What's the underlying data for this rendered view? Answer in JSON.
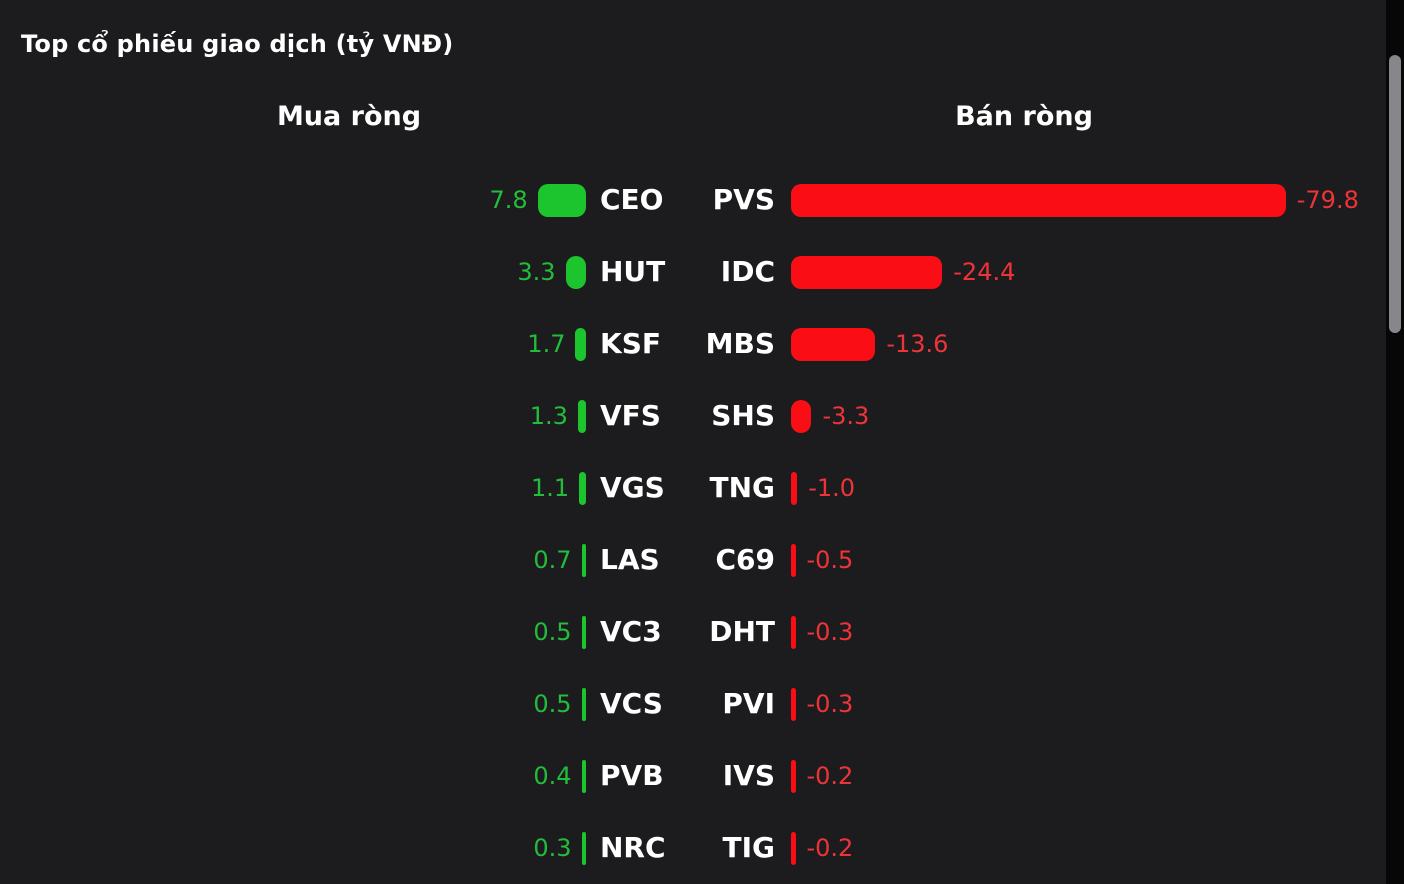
{
  "chart_data": {
    "type": "bar",
    "title": "Top cổ phiếu giao dịch (tỷ VNĐ)",
    "unit": "tỷ VNĐ",
    "columns": [
      "Mua ròng",
      "Bán ròng"
    ],
    "orientation": "horizontal",
    "grid": false,
    "rows": [
      {
        "buy": {
          "ticker": "CEO",
          "value": 7.8,
          "label": "7.8"
        },
        "sell": {
          "ticker": "PVS",
          "value": -79.8,
          "label": "-79.8"
        }
      },
      {
        "buy": {
          "ticker": "HUT",
          "value": 3.3,
          "label": "3.3"
        },
        "sell": {
          "ticker": "IDC",
          "value": -24.4,
          "label": "-24.4"
        }
      },
      {
        "buy": {
          "ticker": "KSF",
          "value": 1.7,
          "label": "1.7"
        },
        "sell": {
          "ticker": "MBS",
          "value": -13.6,
          "label": "-13.6"
        }
      },
      {
        "buy": {
          "ticker": "VFS",
          "value": 1.3,
          "label": "1.3"
        },
        "sell": {
          "ticker": "SHS",
          "value": -3.3,
          "label": "-3.3"
        }
      },
      {
        "buy": {
          "ticker": "VGS",
          "value": 1.1,
          "label": "1.1"
        },
        "sell": {
          "ticker": "TNG",
          "value": -1.0,
          "label": "-1.0"
        }
      },
      {
        "buy": {
          "ticker": "LAS",
          "value": 0.7,
          "label": "0.7"
        },
        "sell": {
          "ticker": "C69",
          "value": -0.5,
          "label": "-0.5"
        }
      },
      {
        "buy": {
          "ticker": "VC3",
          "value": 0.5,
          "label": "0.5"
        },
        "sell": {
          "ticker": "DHT",
          "value": -0.3,
          "label": "-0.3"
        }
      },
      {
        "buy": {
          "ticker": "VCS",
          "value": 0.5,
          "label": "0.5"
        },
        "sell": {
          "ticker": "PVI",
          "value": -0.3,
          "label": "-0.3"
        }
      },
      {
        "buy": {
          "ticker": "PVB",
          "value": 0.4,
          "label": "0.4"
        },
        "sell": {
          "ticker": "IVS",
          "value": -0.2,
          "label": "-0.2"
        }
      },
      {
        "buy": {
          "ticker": "NRC",
          "value": 0.3,
          "label": "0.3"
        },
        "sell": {
          "ticker": "TIG",
          "value": -0.2,
          "label": "-0.2"
        }
      }
    ],
    "series": [
      {
        "name": "Mua ròng",
        "color": "#1cc52e",
        "tickers": [
          "CEO",
          "HUT",
          "KSF",
          "VFS",
          "VGS",
          "LAS",
          "VC3",
          "VCS",
          "PVB",
          "NRC"
        ],
        "values": [
          7.8,
          3.3,
          1.7,
          1.3,
          1.1,
          0.7,
          0.5,
          0.5,
          0.4,
          0.3
        ]
      },
      {
        "name": "Bán ròng",
        "color": "#fb0d15",
        "tickers": [
          "PVS",
          "IDC",
          "MBS",
          "SHS",
          "TNG",
          "C69",
          "DHT",
          "PVI",
          "IVS",
          "TIG"
        ],
        "values": [
          -79.8,
          -24.4,
          -13.6,
          -3.3,
          -1.0,
          -0.5,
          -0.3,
          -0.3,
          -0.2,
          -0.2
        ]
      }
    ]
  },
  "colors": {
    "background": "#1c1c1e",
    "buy_bar": "#1cc52e",
    "buy_text": "#22bd3b",
    "sell_bar": "#fb0d15",
    "sell_text": "#ee3439",
    "ticker_text": "#ffffff",
    "scrollbar_track": "#070708",
    "scrollbar_thumb": "#87878b"
  }
}
